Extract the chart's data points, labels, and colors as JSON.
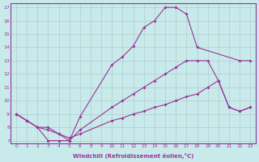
{
  "xlabel": "Windchill (Refroidissement éolien,°C)",
  "bg_color": "#c8eaea",
  "line_color": "#993399",
  "grid_color": "#b0cccc",
  "xlim": [
    -0.5,
    23.5
  ],
  "ylim": [
    6.8,
    17.3
  ],
  "xtick_vals": [
    0,
    1,
    2,
    3,
    4,
    5,
    6,
    8,
    9,
    10,
    11,
    12,
    13,
    14,
    15,
    16,
    17,
    18,
    19,
    20,
    21,
    22,
    23
  ],
  "xtick_labels": [
    "0",
    "1",
    "2",
    "3",
    "4",
    "5",
    "6",
    "8",
    "9",
    "10",
    "11",
    "12",
    "13",
    "14",
    "15",
    "16",
    "17",
    "18",
    "19",
    "20",
    "21",
    "22",
    "23"
  ],
  "ytick_vals": [
    7,
    8,
    9,
    10,
    11,
    12,
    13,
    14,
    15,
    16,
    17
  ],
  "ytick_labels": [
    "7",
    "8",
    "9",
    "10",
    "11",
    "12",
    "13",
    "14",
    "15",
    "16",
    "17"
  ],
  "lines": [
    {
      "x": [
        0,
        1,
        2,
        3,
        4,
        5,
        6,
        10,
        11,
        12,
        13,
        14,
        15,
        16,
        17,
        18,
        22,
        23
      ],
      "y": [
        9,
        8.5,
        8,
        7,
        7,
        7,
        8.8,
        12.7,
        13.3,
        14.1,
        15.5,
        16.0,
        17,
        17,
        16.5,
        14.0,
        13.0,
        13.0
      ]
    },
    {
      "x": [
        0,
        1,
        2,
        3,
        4,
        5,
        6,
        10,
        11,
        12,
        13,
        14,
        15,
        16,
        17,
        18,
        19,
        20,
        21,
        22,
        23
      ],
      "y": [
        9,
        8.5,
        8,
        8,
        7.5,
        7,
        7.8,
        9.5,
        10.0,
        10.5,
        11.0,
        11.5,
        12.0,
        12.5,
        13.0,
        13.0,
        13.0,
        11.5,
        9.5,
        9.2,
        9.5
      ]
    },
    {
      "x": [
        0,
        1,
        2,
        3,
        4,
        5,
        6,
        10,
        11,
        12,
        13,
        14,
        15,
        16,
        17,
        18,
        19,
        20,
        21,
        22,
        23
      ],
      "y": [
        9,
        8.5,
        8,
        7.8,
        7.5,
        7.2,
        7.5,
        8.5,
        8.7,
        9.0,
        9.2,
        9.5,
        9.7,
        10.0,
        10.3,
        10.5,
        11.0,
        11.5,
        9.5,
        9.2,
        9.5
      ]
    }
  ]
}
